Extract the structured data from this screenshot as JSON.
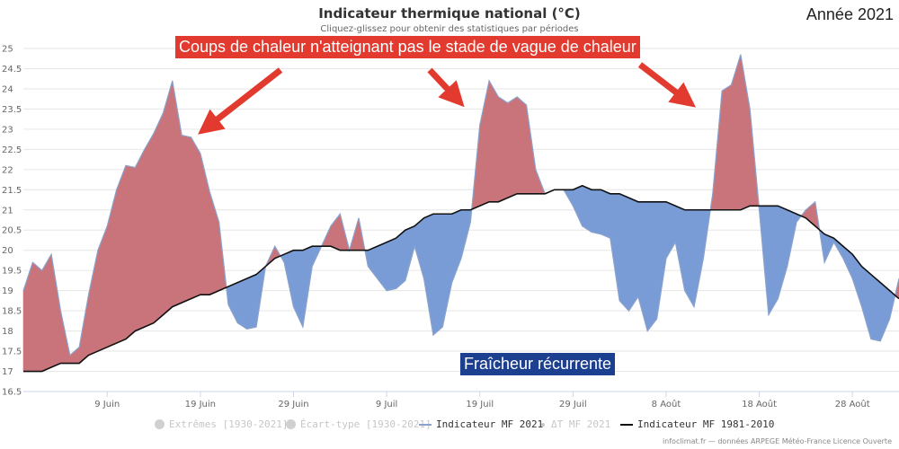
{
  "header": {
    "title": "Indicateur thermique national (°C)",
    "subtitle": "Cliquez-glissez pour obtenir des statistiques par périodes",
    "year_label": "Année 2021"
  },
  "annotations": {
    "heat_label": "Coups de chaleur n'atteignant pas le stade de vague de chaleur",
    "cool_label": "Fraîcheur récurrente"
  },
  "legend": {
    "extremes": "Extrêmes [1930-2021]",
    "stddev": "Écart-type [1930-2021]",
    "mf2021": "Indicateur MF 2021",
    "delta": "ΔT MF 2021",
    "normal": "Indicateur MF 1981-2010"
  },
  "credits": "infoclimat.fr — données ARPEGE Météo-France Licence Ouverte",
  "colors": {
    "above": "#c9747a",
    "below": "#7a9cd6",
    "line2021": "#8aa2cc",
    "normal_line": "#111111",
    "callout_red": "#e23a2e",
    "callout_blue": "#1c3f8f"
  },
  "chart_data": {
    "type": "area",
    "x_start": "1 Juin",
    "x_end": "31 Août",
    "ylim": [
      16.5,
      25
    ],
    "y_ticks": [
      16.5,
      17,
      17.5,
      18,
      18.5,
      19,
      19.5,
      20,
      20.5,
      21,
      21.5,
      22,
      22.5,
      23,
      23.5,
      24,
      24.5,
      25
    ],
    "x_ticks": [
      {
        "day": 9,
        "label": "9 Juin"
      },
      {
        "day": 19,
        "label": "19 Juin"
      },
      {
        "day": 29,
        "label": "29 Juin"
      },
      {
        "day": 39,
        "label": "9 Juil"
      },
      {
        "day": 49,
        "label": "19 Juil"
      },
      {
        "day": 59,
        "label": "29 Juil"
      },
      {
        "day": 69,
        "label": "8 Août"
      },
      {
        "day": 79,
        "label": "18 Août"
      },
      {
        "day": 89,
        "label": "28 Août"
      }
    ],
    "grid": true,
    "legend_position": "bottom",
    "series": [
      {
        "name": "Indicateur MF 2021",
        "values": [
          19.0,
          19.7,
          19.5,
          19.9,
          18.5,
          17.4,
          17.6,
          18.9,
          20.0,
          20.6,
          21.5,
          22.1,
          22.05,
          22.5,
          22.9,
          23.4,
          24.2,
          22.85,
          22.8,
          22.4,
          21.45,
          20.7,
          18.65,
          18.2,
          18.05,
          18.1,
          19.6,
          20.1,
          19.7,
          18.6,
          18.1,
          19.6,
          20.1,
          20.6,
          20.9,
          20.0,
          20.8,
          19.6,
          19.3,
          19.0,
          19.05,
          19.25,
          20.1,
          19.3,
          17.9,
          18.1,
          19.2,
          19.8,
          20.7,
          23.1,
          24.2,
          23.8,
          23.65,
          23.8,
          23.6,
          22.0,
          21.4,
          21.5,
          21.5,
          21.1,
          20.6,
          20.45,
          20.4,
          20.3,
          18.75,
          18.5,
          18.85,
          18.0,
          18.3,
          19.8,
          20.2,
          19.0,
          18.6,
          19.8,
          21.4,
          23.95,
          24.1,
          24.85,
          23.5,
          21.0,
          18.4,
          18.8,
          19.6,
          20.7,
          21.0,
          21.2,
          19.7,
          20.2,
          19.8,
          19.3,
          18.6,
          17.8,
          17.75,
          18.3,
          19.3
        ]
      },
      {
        "name": "Indicateur MF 1981-2010",
        "values": [
          17.0,
          17.0,
          17.0,
          17.1,
          17.2,
          17.2,
          17.2,
          17.4,
          17.5,
          17.6,
          17.7,
          17.8,
          18.0,
          18.1,
          18.2,
          18.4,
          18.6,
          18.7,
          18.8,
          18.9,
          18.9,
          19.0,
          19.1,
          19.2,
          19.3,
          19.4,
          19.6,
          19.8,
          19.9,
          20.0,
          20.0,
          20.1,
          20.1,
          20.1,
          20.0,
          20.0,
          20.0,
          20.0,
          20.1,
          20.2,
          20.3,
          20.5,
          20.6,
          20.8,
          20.9,
          20.9,
          20.9,
          21.0,
          21.0,
          21.1,
          21.2,
          21.2,
          21.3,
          21.4,
          21.4,
          21.4,
          21.4,
          21.5,
          21.5,
          21.5,
          21.6,
          21.5,
          21.5,
          21.4,
          21.4,
          21.3,
          21.2,
          21.2,
          21.2,
          21.2,
          21.1,
          21.0,
          21.0,
          21.0,
          21.0,
          21.0,
          21.0,
          21.0,
          21.1,
          21.1,
          21.1,
          21.1,
          21.0,
          20.9,
          20.8,
          20.6,
          20.4,
          20.3,
          20.1,
          19.9,
          19.6,
          19.4,
          19.2,
          19.0,
          18.8
        ]
      }
    ]
  }
}
